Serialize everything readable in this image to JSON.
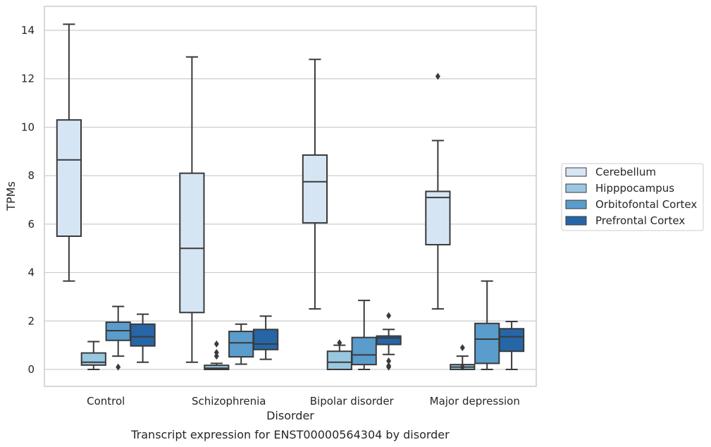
{
  "chart_data": {
    "type": "box",
    "xlabel": "Disorder",
    "ylabel": "TPMs",
    "caption": "Transcript expression for ENST00000564304 by disorder",
    "ylim": [
      -0.7,
      15
    ],
    "yticks": [
      "0",
      "2",
      "4",
      "6",
      "8",
      "10",
      "12",
      "14"
    ],
    "categories": [
      "Control",
      "Schizophrenia",
      "Bipolar disorder",
      "Major depression"
    ],
    "grid": true,
    "legend_position": "right",
    "series": [
      {
        "name": "Cerebellum",
        "color": "#d6e5f4",
        "boxes": [
          {
            "whislo": 3.65,
            "q1": 5.5,
            "med": 8.65,
            "q3": 10.3,
            "whishi": 14.25,
            "fliers": []
          },
          {
            "whislo": 0.3,
            "q1": 2.35,
            "med": 5.0,
            "q3": 8.1,
            "whishi": 12.9,
            "fliers": []
          },
          {
            "whislo": 2.5,
            "q1": 6.05,
            "med": 7.75,
            "q3": 8.85,
            "whishi": 12.8,
            "fliers": []
          },
          {
            "whislo": 2.5,
            "q1": 5.15,
            "med": 7.1,
            "q3": 7.35,
            "whishi": 9.45,
            "fliers": [
              12.1
            ]
          }
        ]
      },
      {
        "name": "Hipppocampus",
        "color": "#9ac7e0",
        "boxes": [
          {
            "whislo": 0.0,
            "q1": 0.18,
            "med": 0.3,
            "q3": 0.68,
            "whishi": 1.15,
            "fliers": []
          },
          {
            "whislo": 0.0,
            "q1": 0.0,
            "med": 0.05,
            "q3": 0.17,
            "whishi": 0.25,
            "fliers": [
              0.55,
              0.7,
              1.05
            ]
          },
          {
            "whislo": 0.0,
            "q1": 0.0,
            "med": 0.3,
            "q3": 0.75,
            "whishi": 1.0,
            "fliers": [
              1.1
            ]
          },
          {
            "whislo": 0.0,
            "q1": 0.0,
            "med": 0.1,
            "q3": 0.2,
            "whishi": 0.55,
            "fliers": [
              0.1,
              0.9
            ]
          }
        ]
      },
      {
        "name": "Orbitofontal Cortex",
        "color": "#5a9ccc",
        "boxes": [
          {
            "whislo": 0.55,
            "q1": 1.2,
            "med": 1.6,
            "q3": 1.95,
            "whishi": 2.6,
            "fliers": [
              0.1
            ]
          },
          {
            "whislo": 0.22,
            "q1": 0.52,
            "med": 1.1,
            "q3": 1.57,
            "whishi": 1.87,
            "fliers": []
          },
          {
            "whislo": 0.0,
            "q1": 0.2,
            "med": 0.6,
            "q3": 1.32,
            "whishi": 2.85,
            "fliers": []
          },
          {
            "whislo": 0.0,
            "q1": 0.25,
            "med": 1.25,
            "q3": 1.9,
            "whishi": 3.65,
            "fliers": []
          }
        ]
      },
      {
        "name": "Prefrontal Cortex",
        "color": "#2666a7",
        "boxes": [
          {
            "whislo": 0.3,
            "q1": 0.97,
            "med": 1.35,
            "q3": 1.87,
            "whishi": 2.28,
            "fliers": []
          },
          {
            "whislo": 0.42,
            "q1": 0.82,
            "med": 1.05,
            "q3": 1.65,
            "whishi": 2.2,
            "fliers": []
          },
          {
            "whislo": 0.62,
            "q1": 1.03,
            "med": 1.3,
            "q3": 1.38,
            "whishi": 1.65,
            "fliers": [
              0.1,
              0.15,
              0.35,
              2.22
            ]
          },
          {
            "whislo": 0.0,
            "q1": 0.75,
            "med": 1.35,
            "q3": 1.68,
            "whishi": 1.98,
            "fliers": []
          }
        ]
      }
    ]
  }
}
